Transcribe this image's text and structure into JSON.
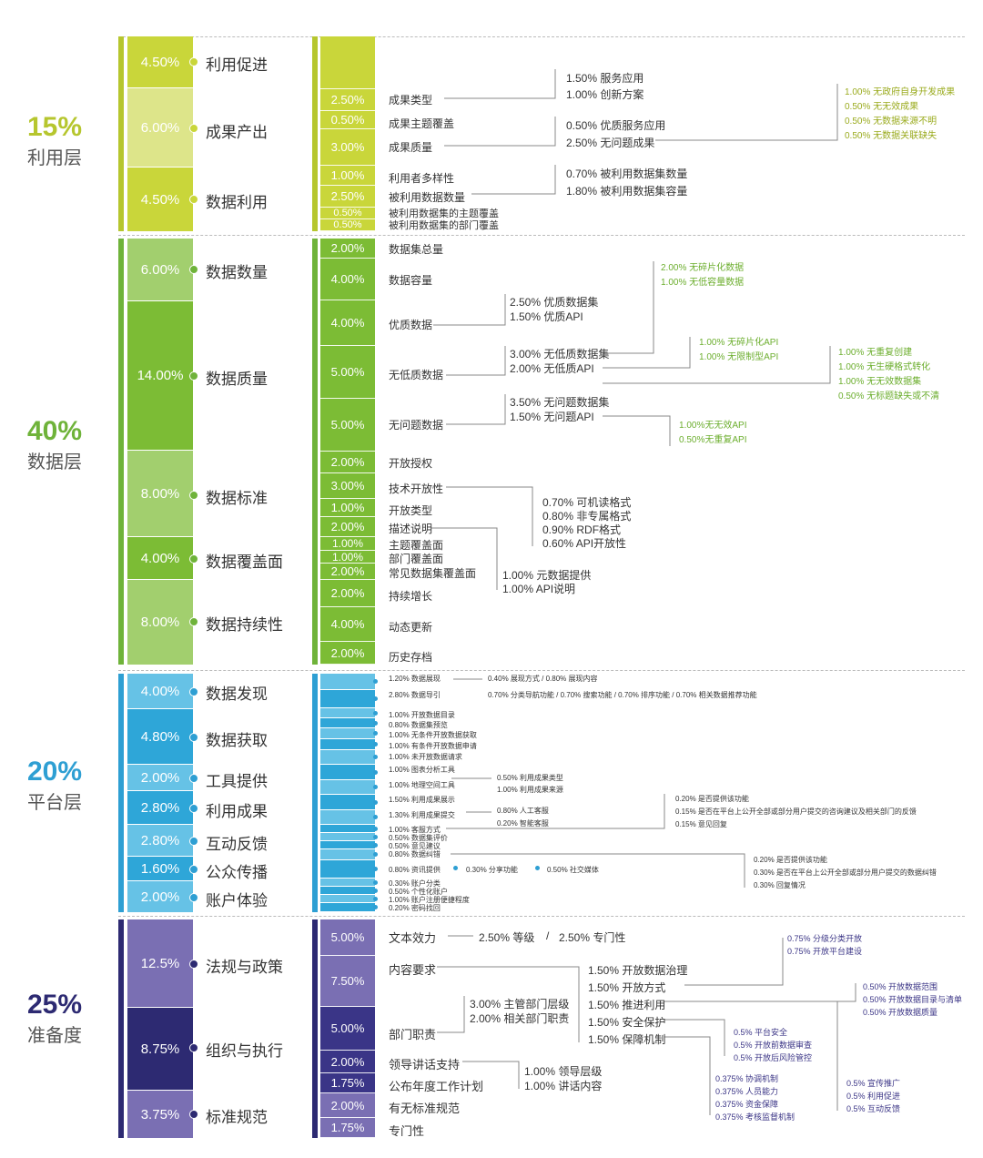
{
  "colors": {
    "utilization": "#b6c62e",
    "utilization_dark": "#c9d63a",
    "utilization_light": "#dde58a",
    "utilization_text": "#9aab1e",
    "data": "#6fb33a",
    "data_dark": "#7cbc35",
    "data_light": "#a2cf6e",
    "data_text": "#6cae2e",
    "platform": "#2e9fd3",
    "platform_dark": "#2ea6d8",
    "platform_light": "#66c2e6",
    "platform_text": "#2e9fd3",
    "readiness": "#2d2a72",
    "readiness_dark": "#3a3587",
    "readiness_light": "#7a6fb3",
    "readiness_text": "#3b3586"
  },
  "layers": [
    {
      "percent": "15%",
      "name": "利用层",
      "categories": [
        {
          "value": "4.50%",
          "label": "利用促进"
        },
        {
          "value": "6.00%",
          "label": "成果产出"
        },
        {
          "value": "4.50%",
          "label": "数据利用"
        }
      ],
      "subitems": [
        {
          "value": "",
          "label": ""
        },
        {
          "value": "2.50%",
          "label": "成果类型"
        },
        {
          "value": "0.50%",
          "label": "成果主题覆盖"
        },
        {
          "value": "3.00%",
          "label": "成果质量"
        },
        {
          "value": "1.00%",
          "label": "利用者多样性"
        },
        {
          "value": "2.50%",
          "label": "被利用数据数量"
        },
        {
          "value": "0.50%",
          "label": "被利用数据集的主题覆盖"
        },
        {
          "value": "0.50%",
          "label": "被利用数据集的部门覆盖"
        }
      ]
    },
    {
      "percent": "40%",
      "name": "数据层",
      "categories": [
        {
          "value": "6.00%",
          "label": "数据数量"
        },
        {
          "value": "14.00%",
          "label": "数据质量"
        },
        {
          "value": "8.00%",
          "label": "数据标准"
        },
        {
          "value": "4.00%",
          "label": "数据覆盖面"
        },
        {
          "value": "8.00%",
          "label": "数据持续性"
        }
      ],
      "subitems": [
        {
          "value": "2.00%",
          "label": "数据集总量"
        },
        {
          "value": "4.00%",
          "label": "数据容量"
        },
        {
          "value": "4.00%",
          "label": "优质数据"
        },
        {
          "value": "5.00%",
          "label": "无低质数据"
        },
        {
          "value": "5.00%",
          "label": "无问题数据"
        },
        {
          "value": "2.00%",
          "label": "开放授权"
        },
        {
          "value": "3.00%",
          "label": "技术开放性"
        },
        {
          "value": "1.00%",
          "label": "开放类型"
        },
        {
          "value": "2.00%",
          "label": "描述说明"
        },
        {
          "value": "1.00%",
          "label": "主题覆盖面"
        },
        {
          "value": "1.00%",
          "label": "部门覆盖面"
        },
        {
          "value": "2.00%",
          "label": "常见数据集覆盖面"
        },
        {
          "value": "2.00%",
          "label": "持续增长"
        },
        {
          "value": "4.00%",
          "label": "动态更新"
        },
        {
          "value": "2.00%",
          "label": "历史存档"
        }
      ]
    },
    {
      "percent": "20%",
      "name": "平台层",
      "categories": [
        {
          "value": "4.00%",
          "label": "数据发现"
        },
        {
          "value": "4.80%",
          "label": "数据获取"
        },
        {
          "value": "2.00%",
          "label": "工具提供"
        },
        {
          "value": "2.80%",
          "label": "利用成果"
        },
        {
          "value": "2.80%",
          "label": "互动反馈"
        },
        {
          "value": "1.60%",
          "label": "公众传播"
        },
        {
          "value": "2.00%",
          "label": "账户体验"
        }
      ],
      "subitems": [
        {
          "label": "1.20% 数据展现"
        },
        {
          "label": "2.80% 数据导引"
        },
        {
          "label": "1.00% 开放数据目录"
        },
        {
          "label": "0.80% 数据集预览"
        },
        {
          "label": "1.00% 无条件开放数据获取"
        },
        {
          "label": "1.00% 有条件开放数据申请"
        },
        {
          "label": "1.00% 未开放数据请求"
        },
        {
          "label": "1.00% 图表分析工具"
        },
        {
          "label": "1.00% 地理空间工具"
        },
        {
          "label": "1.50% 利用成果展示"
        },
        {
          "label": "1.30% 利用成果提交"
        },
        {
          "label": "1.00% 客服方式"
        },
        {
          "label": "0.50% 数据集评价"
        },
        {
          "label": "0.50% 意见建议"
        },
        {
          "label": "0.80% 数据纠错"
        },
        {
          "label": "0.80% 资讯提供"
        },
        {
          "label": "0.30% 账户分类"
        },
        {
          "label": "0.50% 个性化账户"
        },
        {
          "label": "1.00% 账户注册便捷程度"
        },
        {
          "label": "0.20% 密码找回"
        }
      ]
    },
    {
      "percent": "25%",
      "name": "准备度",
      "categories": [
        {
          "value": "12.5%",
          "label": "法规与政策"
        },
        {
          "value": "8.75%",
          "label": "组织与执行"
        },
        {
          "value": "3.75%",
          "label": "标准规范"
        }
      ],
      "subitems": [
        {
          "value": "5.00%",
          "label": "文本效力"
        },
        {
          "value": "7.50%",
          "label": "内容要求"
        },
        {
          "value": "5.00%",
          "label": "部门职责"
        },
        {
          "value": "2.00%",
          "label": "领导讲话支持"
        },
        {
          "value": "1.75%",
          "label": "公布年度工作计划"
        },
        {
          "value": "2.00%",
          "label": "有无标准规范"
        },
        {
          "value": "1.75%",
          "label": "专门性"
        }
      ]
    }
  ],
  "notes": {
    "util_1": "1.50% 服务应用",
    "util_2": "1.00% 创新方案",
    "util_3": "0.50% 优质服务应用",
    "util_4": "2.50% 无问题成果",
    "util_5": "1.00% 无政府自身开发成果",
    "util_6": "0.50% 无无效成果",
    "util_7": "0.50% 无数据来源不明",
    "util_8": "0.50% 无数据关联缺失",
    "util_9": "0.70% 被利用数据集数量",
    "util_10": "1.80% 被利用数据集容量",
    "data_1": "2.00% 无碎片化数据",
    "data_2": "1.00% 无低容量数据",
    "data_3": "2.50% 优质数据集",
    "data_4": "1.50% 优质API",
    "data_5": "3.00% 无低质数据集",
    "data_6": "2.00% 无低质API",
    "data_7": "1.00% 无碎片化API",
    "data_8": "1.00% 无限制型API",
    "data_9": "1.00% 无重复创建",
    "data_10": "1.00% 无生硬格式转化",
    "data_11": "1.00% 无无效数据集",
    "data_12": "0.50% 无标题缺失或不清",
    "data_13": "3.50% 无问题数据集",
    "data_14": "1.50% 无问题API",
    "data_15": "1.00%无无效API",
    "data_16": "0.50%无重复API",
    "data_17": "0.70% 可机读格式",
    "data_18": "0.80% 非专属格式",
    "data_19": "0.90% RDF格式",
    "data_20": "0.60% API开放性",
    "data_21": "1.00% 元数据提供",
    "data_22": "1.00% API说明",
    "plat_1": "0.40% 展现方式 / 0.80% 展现内容",
    "plat_2": "0.70% 分类导航功能 / 0.70% 搜索功能 / 0.70% 排序功能 / 0.70% 相关数据推荐功能",
    "plat_3": "0.50% 利用成果类型",
    "plat_4": "1.00% 利用成果来源",
    "plat_5": "0.80% 人工客服",
    "plat_6": "0.20% 智能客服",
    "plat_7": "0.20% 是否提供该功能",
    "plat_8": "0.15% 是否在平台上公开全部或部分用户提交的咨询建议及相关部门的反馈",
    "plat_9": "0.15% 意见回复",
    "plat_10": "0.30% 分享功能",
    "plat_11": "0.50% 社交媒体",
    "plat_12": "0.20% 是否提供该功能",
    "plat_13": "0.30% 是否在平台上公开全部或部分用户提交的数据纠错",
    "plat_14": "0.30% 回复情况",
    "ready_1": "2.50% 等级",
    "ready_slash": "/",
    "ready_2": "2.50% 专门性",
    "ready_3": "0.75% 分级分类开放",
    "ready_4": "0.75% 开放平台建设",
    "ready_5": "1.50% 开放数据治理",
    "ready_6": "1.50% 开放方式",
    "ready_7": "1.50% 推进利用",
    "ready_8": "1.50% 安全保护",
    "ready_9": "1.50% 保障机制",
    "ready_10": "0.50% 开放数据范围",
    "ready_11": "0.50% 开放数据目录与清单",
    "ready_12": "0.50% 开放数据质量",
    "ready_13": "3.00% 主管部门层级",
    "ready_14": "2.00% 相关部门职责",
    "ready_15": "0.5% 平台安全",
    "ready_16": "0.5% 开放前数据审查",
    "ready_17": "0.5% 开放后风险管控",
    "ready_18": "1.00% 领导层级",
    "ready_19": "1.00% 讲话内容",
    "ready_20": "0.375% 协调机制",
    "ready_21": "0.375% 人员能力",
    "ready_22": "0.375% 资金保障",
    "ready_23": "0.375% 考核监督机制",
    "ready_24": "0.5% 宣传推广",
    "ready_25": "0.5% 利用促进",
    "ready_26": "0.5% 互动反馈"
  }
}
